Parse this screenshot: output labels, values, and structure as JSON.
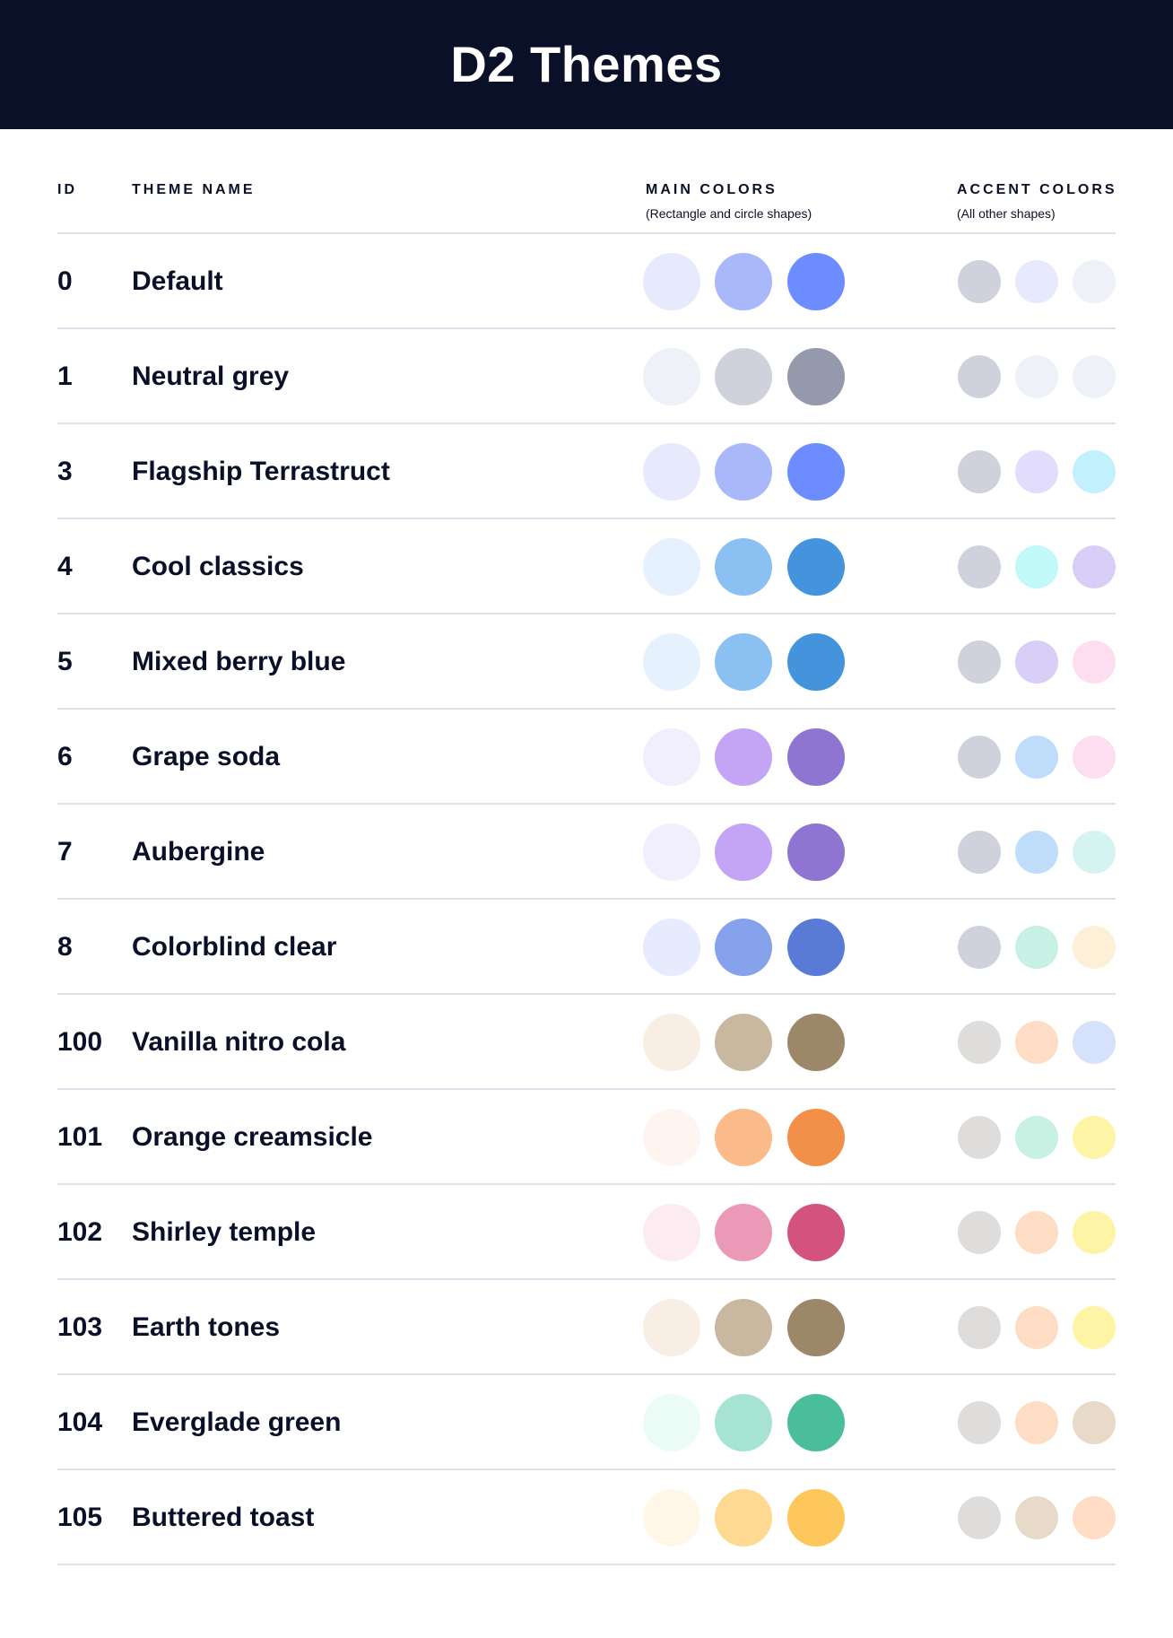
{
  "title": "D2 Themes",
  "columns": {
    "id": "ID",
    "name": "THEME NAME",
    "main": "MAIN COLORS",
    "main_sub": "(Rectangle and circle shapes)",
    "accent": "ACCENT COLORS",
    "accent_sub": "(All other shapes)"
  },
  "themes": [
    {
      "id": "0",
      "name": "Default",
      "main": [
        "#E7E9FD",
        "#A9B8F8",
        "#6C8CFF"
      ],
      "accent": [
        "#CFD2DD",
        "#E7E9FD",
        "#EEF1F8"
      ]
    },
    {
      "id": "1",
      "name": "Neutral grey",
      "main": [
        "#EEF1F8",
        "#CFD2DD",
        "#9499AB"
      ],
      "accent": [
        "#CFD2DD",
        "#EEF1F8",
        "#EEF1F8"
      ]
    },
    {
      "id": "3",
      "name": "Flagship Terrastruct",
      "main": [
        "#E7E9FD",
        "#A9B8F8",
        "#6C8CFF"
      ],
      "accent": [
        "#CFD2DD",
        "#E3DDFD",
        "#C3F0FD"
      ]
    },
    {
      "id": "4",
      "name": "Cool classics",
      "main": [
        "#E5F2FD",
        "#8BC0F3",
        "#4393DD"
      ],
      "accent": [
        "#CFD2DD",
        "#C1F8F8",
        "#D8CEF8"
      ]
    },
    {
      "id": "5",
      "name": "Mixed berry blue",
      "main": [
        "#E5F2FD",
        "#8BC0F3",
        "#4393DD"
      ],
      "accent": [
        "#CFD2DD",
        "#D8CEF8",
        "#FDDEF0"
      ]
    },
    {
      "id": "6",
      "name": "Grape soda",
      "main": [
        "#F1EEFE",
        "#C4A5F5",
        "#9074D1"
      ],
      "accent": [
        "#CFD2DD",
        "#BEDDFB",
        "#FDDEF0"
      ]
    },
    {
      "id": "7",
      "name": "Aubergine",
      "main": [
        "#F1EEFE",
        "#C4A5F5",
        "#9074D1"
      ],
      "accent": [
        "#CFD2DD",
        "#BEDDFB",
        "#D4F3F1"
      ]
    },
    {
      "id": "8",
      "name": "Colorblind clear",
      "main": [
        "#E6EBFD",
        "#86A2EC",
        "#5A7BD5"
      ],
      "accent": [
        "#CFD2DD",
        "#C7F1E4",
        "#FEF0D7"
      ]
    },
    {
      "id": "100",
      "name": "Vanilla nitro cola",
      "main": [
        "#F8EEE3",
        "#C9B8A0",
        "#9C8769"
      ],
      "accent": [
        "#DEDDDB",
        "#FEDDC4",
        "#D6E1FC"
      ]
    },
    {
      "id": "101",
      "name": "Orange creamsicle",
      "main": [
        "#FEF5F0",
        "#FBBA8A",
        "#F2904A"
      ],
      "accent": [
        "#DEDDDB",
        "#C8F1E4",
        "#FEF4A6"
      ]
    },
    {
      "id": "102",
      "name": "Shirley temple",
      "main": [
        "#FCEBF1",
        "#EA99B6",
        "#D3537E"
      ],
      "accent": [
        "#DEDDDB",
        "#FEDDC4",
        "#FEF4A6"
      ]
    },
    {
      "id": "103",
      "name": "Earth tones",
      "main": [
        "#F8EEE3",
        "#C9B8A0",
        "#9C8769"
      ],
      "accent": [
        "#DEDDDB",
        "#FEDDC4",
        "#FEF4A6"
      ]
    },
    {
      "id": "104",
      "name": "Everglade green",
      "main": [
        "#EAFCF5",
        "#A7E3D3",
        "#4ABE9B"
      ],
      "accent": [
        "#DEDDDB",
        "#FEDDC4",
        "#E8DAC8"
      ]
    },
    {
      "id": "105",
      "name": "Buttered toast",
      "main": [
        "#FFF7E7",
        "#FED991",
        "#FDC75C"
      ],
      "accent": [
        "#DEDDDB",
        "#E8DAC8",
        "#FEDDC4"
      ]
    }
  ]
}
